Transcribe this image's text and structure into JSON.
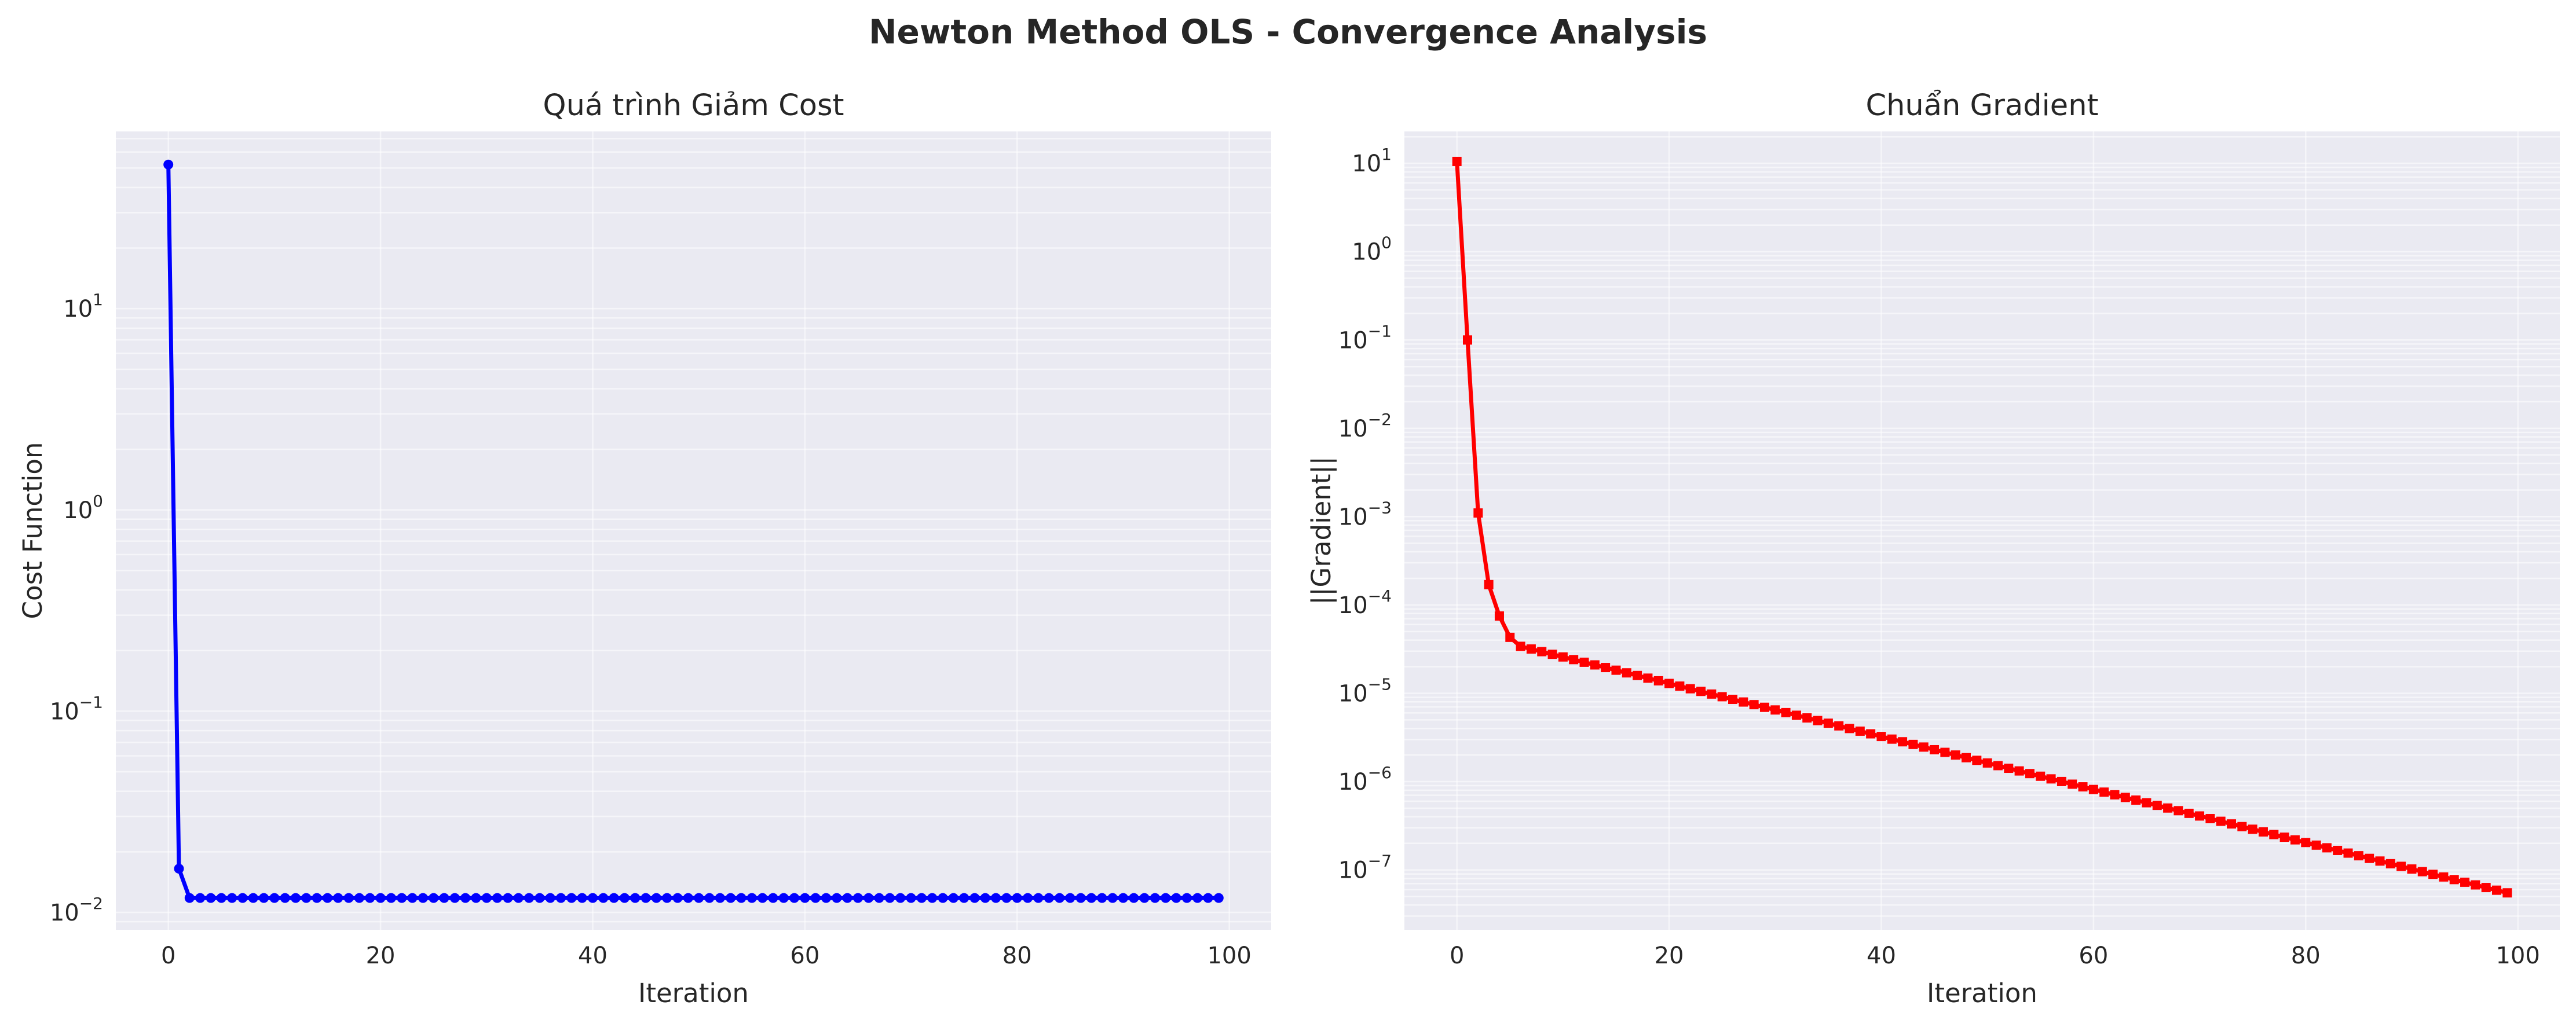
{
  "figure_title": "Newton Method OLS - Convergence Analysis",
  "chart_data": [
    {
      "type": "line",
      "title": "Quá trình Giảm Cost",
      "xlabel": "Iteration",
      "ylabel": "Cost Function",
      "yscale": "log",
      "xlim": [
        -4.95,
        103.95
      ],
      "ylim": [
        0.0082,
        76.0
      ],
      "xticks": [
        0,
        20,
        40,
        60,
        80,
        100
      ],
      "yticks": [
        0.01,
        0.1,
        1,
        10
      ],
      "grid": true,
      "marker": "circle",
      "color": "#0000ff",
      "series": [
        {
          "first_points": [
            [
              0,
              52.0
            ],
            [
              1,
              0.0165
            ],
            [
              2,
              0.0118
            ]
          ],
          "x_range": [
            0,
            99
          ],
          "y_after": 0.0118
        }
      ]
    },
    {
      "type": "line",
      "title": "Chuẩn Gradient",
      "xlabel": "Iteration",
      "ylabel": "||Gradient||",
      "yscale": "log",
      "xlim": [
        -4.95,
        103.95
      ],
      "ylim": [
        2.1e-08,
        23.0
      ],
      "xticks": [
        0,
        20,
        40,
        60,
        80,
        100
      ],
      "yticks": [
        1e-07,
        1e-06,
        1e-05,
        0.0001,
        0.001,
        0.01,
        0.1,
        1,
        10
      ],
      "grid": true,
      "marker": "square",
      "color": "#ff0000",
      "series": [
        {
          "first_points": [
            [
              0,
              10.5
            ],
            [
              1,
              0.1
            ],
            [
              2,
              0.0011
            ],
            [
              3,
              0.00017
            ],
            [
              4,
              7.5e-05
            ],
            [
              5,
              4.3e-05
            ],
            [
              6,
              3.4e-05
            ]
          ],
          "x_range": [
            0,
            99
          ],
          "log_linear_tail": {
            "from": [
              6,
              3.4e-05
            ],
            "to": [
              99,
              5.5e-08
            ]
          }
        }
      ]
    }
  ]
}
